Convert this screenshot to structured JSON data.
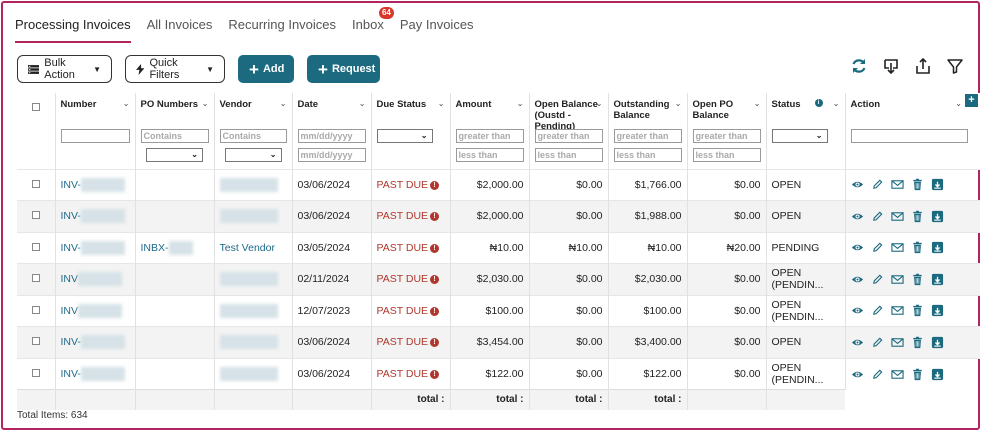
{
  "tabs": [
    {
      "label": "Processing Invoices",
      "active": true
    },
    {
      "label": "All Invoices"
    },
    {
      "label": "Recurring Invoices"
    },
    {
      "label": "Inbox",
      "badge": "64"
    },
    {
      "label": "Pay Invoices"
    }
  ],
  "toolbar": {
    "bulk_action": "Bulk Action",
    "quick_filters": "Quick Filters",
    "add": "Add",
    "request": "Request",
    "right_icons": [
      "refresh-icon",
      "download-icon",
      "upload-icon",
      "filter-icon"
    ]
  },
  "columns": [
    {
      "label": "Number"
    },
    {
      "label": "PO Numbers"
    },
    {
      "label": "Vendor"
    },
    {
      "label": "Date"
    },
    {
      "label": "Due Status"
    },
    {
      "label": "Amount"
    },
    {
      "label": "Open Balance (Oustd - Pending)"
    },
    {
      "label": "Outstanding Balance"
    },
    {
      "label": "Open PO Balance"
    },
    {
      "label": "Status"
    },
    {
      "label": "Action"
    }
  ],
  "filters": {
    "contains": "Contains",
    "date": "mm/dd/yyyy",
    "greater": "greater than",
    "less": "less than"
  },
  "rows": [
    {
      "number": "INV-",
      "po": "",
      "vendor": "",
      "date": "03/06/2024",
      "due": "PAST DUE",
      "amount": "$2,000.00",
      "open": "$0.00",
      "outstanding": "$1,766.00",
      "po_balance": "$0.00",
      "status": "OPEN"
    },
    {
      "number": "INV-",
      "po": "",
      "vendor": "",
      "date": "03/06/2024",
      "due": "PAST DUE",
      "amount": "$2,000.00",
      "open": "$0.00",
      "outstanding": "$1,988.00",
      "po_balance": "$0.00",
      "status": "OPEN"
    },
    {
      "number": "INV-",
      "po": "INBX-",
      "vendor": "Test Vendor",
      "date": "03/05/2024",
      "due": "PAST DUE",
      "amount": "₦10.00",
      "open": "₦10.00",
      "outstanding": "₦10.00",
      "po_balance": "₦20.00",
      "status": "PENDING"
    },
    {
      "number": "INV",
      "po": "",
      "vendor": "",
      "date": "02/11/2024",
      "due": "PAST DUE",
      "amount": "$2,030.00",
      "open": "$0.00",
      "outstanding": "$2,030.00",
      "po_balance": "$0.00",
      "status": "OPEN (PENDIN..."
    },
    {
      "number": "INV",
      "po": "",
      "vendor": "",
      "date": "12/07/2023",
      "due": "PAST DUE",
      "amount": "$100.00",
      "open": "$0.00",
      "outstanding": "$100.00",
      "po_balance": "$0.00",
      "status": "OPEN (PENDIN..."
    },
    {
      "number": "INV-",
      "po": "",
      "vendor": "",
      "date": "03/06/2024",
      "due": "PAST DUE",
      "amount": "$3,454.00",
      "open": "$0.00",
      "outstanding": "$3,400.00",
      "po_balance": "$0.00",
      "status": "OPEN"
    },
    {
      "number": "INV-",
      "po": "",
      "vendor": "",
      "date": "03/06/2024",
      "due": "PAST DUE",
      "amount": "$122.00",
      "open": "$0.00",
      "outstanding": "$122.00",
      "po_balance": "$0.00",
      "status": "OPEN (PENDIN..."
    }
  ],
  "totals_label": "total :",
  "footer": {
    "total_items": "Total Items: 634"
  },
  "colors": {
    "accent": "#b0245f",
    "teal": "#1b6a80",
    "past_due": "#b0372b",
    "link": "#1e6a89"
  }
}
